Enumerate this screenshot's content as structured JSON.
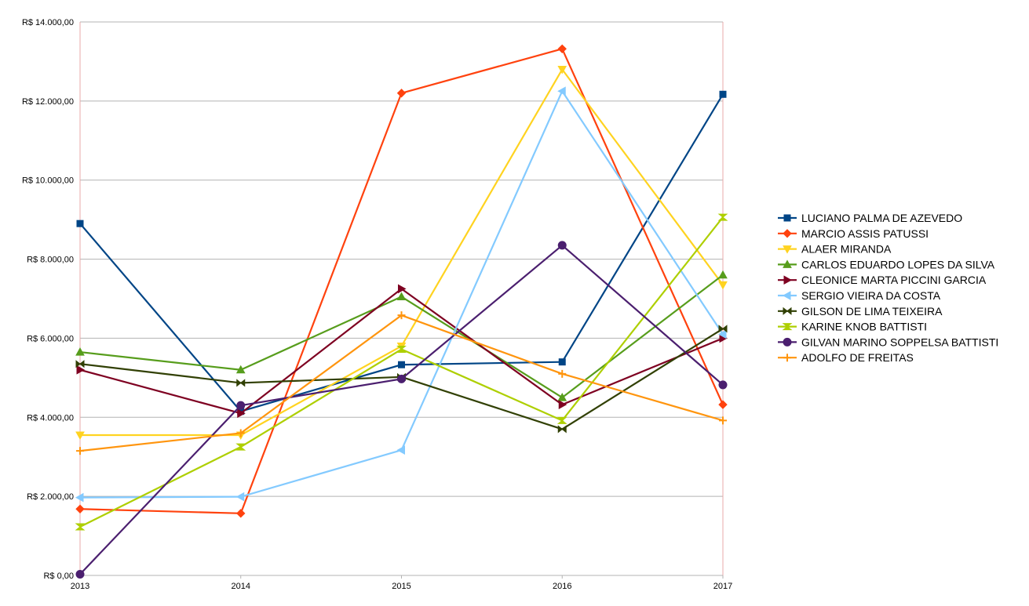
{
  "chart_data": {
    "type": "line",
    "title": "",
    "xlabel": "",
    "ylabel": "",
    "categories": [
      "2013",
      "2014",
      "2015",
      "2016",
      "2017"
    ],
    "ylim": [
      0,
      14000
    ],
    "yticks": [
      0,
      2000,
      4000,
      6000,
      8000,
      10000,
      12000,
      14000
    ],
    "ytick_labels": [
      "R$ 0,00",
      "R$ 2.000,00",
      "R$ 4.000,00",
      "R$ 6.000,00",
      "R$ 8.000,00",
      "R$ 10.000,00",
      "R$ 12.000,00",
      "R$ 14.000,00"
    ],
    "grid": true,
    "legend_position": "right",
    "series": [
      {
        "name": "LUCIANO PALMA DE AZEVEDO",
        "color": "#004586",
        "marker": "square",
        "values": [
          8900,
          4150,
          5330,
          5400,
          12170
        ]
      },
      {
        "name": "MARCIO ASSIS PATUSSI",
        "color": "#ff420e",
        "marker": "diamond",
        "values": [
          1680,
          1570,
          12200,
          13320,
          4320
        ]
      },
      {
        "name": "ALAER MIRANDA",
        "color": "#ffd320",
        "marker": "triangle-down",
        "values": [
          3550,
          3550,
          5800,
          12800,
          7350
        ]
      },
      {
        "name": "CARLOS EDUARDO LOPES DA SILVA",
        "color": "#579d1c",
        "marker": "triangle-up",
        "values": [
          5650,
          5200,
          7050,
          4500,
          7600
        ]
      },
      {
        "name": "CLEONICE MARTA PICCINI GARCIA",
        "color": "#7e0021",
        "marker": "triangle-right",
        "values": [
          5200,
          4100,
          7250,
          4320,
          6000
        ]
      },
      {
        "name": "SERGIO VIEIRA DA COSTA",
        "color": "#83caff",
        "marker": "triangle-left",
        "values": [
          1970,
          1990,
          3170,
          12250,
          6100
        ]
      },
      {
        "name": "GILSON DE LIMA TEIXEIRA",
        "color": "#314004",
        "marker": "bowtie",
        "values": [
          5350,
          4870,
          5020,
          3700,
          6240
        ]
      },
      {
        "name": "KARINE KNOB BATTISTI",
        "color": "#aecf00",
        "marker": "hourglass",
        "values": [
          1230,
          3250,
          5720,
          3920,
          9060
        ]
      },
      {
        "name": "GILVAN MARINO SOPPELSA BATTISTI",
        "color": "#4b1f6f",
        "marker": "circle",
        "values": [
          30,
          4300,
          4970,
          8350,
          4820
        ]
      },
      {
        "name": "ADOLFO DE FREITAS",
        "color": "#ff950e",
        "marker": "plus",
        "values": [
          3150,
          3600,
          6580,
          5100,
          3920
        ]
      }
    ]
  }
}
